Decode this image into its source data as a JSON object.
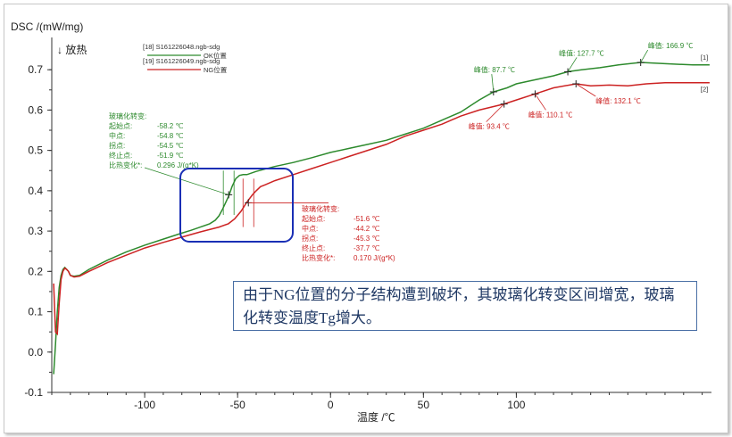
{
  "chart_data": {
    "type": "line",
    "ylabel": "DSC /(mW/mg)",
    "exo_label": "↓ 放热",
    "xlabel": "温度 /℃",
    "xlim": [
      -150,
      205
    ],
    "ylim": [
      -0.1,
      0.78
    ],
    "x_ticks": [
      "-100",
      "-50",
      "0",
      "50",
      "100"
    ],
    "x_tick_values": [
      -100,
      -50,
      0,
      50,
      100
    ],
    "y_ticks": [
      "0.7",
      "0.6",
      "0.5",
      "0.4",
      "0.3",
      "0.2",
      "0.1",
      "0.0",
      "-0.1"
    ],
    "y_tick_values": [
      0.7,
      0.6,
      0.5,
      0.4,
      0.3,
      0.2,
      0.1,
      0.0,
      -0.1
    ],
    "legend": [
      {
        "id": "[18] S161226048.ngb-sdg",
        "name": "OK位置",
        "color": "#2d8a2d"
      },
      {
        "id": "[19] S161226049.ngb-sdg",
        "name": "NG位置",
        "color": "#cc2222"
      }
    ],
    "series": [
      {
        "name": "OK位置",
        "end_tag": "[1]",
        "color": "#2d8a2d",
        "x": [
          -149,
          -148,
          -147,
          -146,
          -145,
          -144,
          -143,
          -142,
          -141,
          -140,
          -138,
          -135,
          -130,
          -120,
          -110,
          -100,
          -90,
          -80,
          -75,
          -70,
          -65,
          -62,
          -60,
          -58,
          -56,
          -54.5,
          -53,
          -51,
          -49,
          -47,
          -45,
          -40,
          -30,
          -20,
          -10,
          0,
          10,
          20,
          30,
          40,
          50,
          60,
          70,
          80,
          87.7,
          95,
          100,
          110,
          120,
          127.7,
          135,
          145,
          155,
          166.9,
          180,
          195,
          204
        ],
        "y": [
          -0.055,
          0.02,
          0.1,
          0.16,
          0.19,
          0.205,
          0.21,
          0.205,
          0.2,
          0.19,
          0.188,
          0.19,
          0.205,
          0.228,
          0.248,
          0.265,
          0.28,
          0.295,
          0.302,
          0.31,
          0.318,
          0.327,
          0.338,
          0.355,
          0.375,
          0.39,
          0.41,
          0.43,
          0.438,
          0.44,
          0.44,
          0.448,
          0.46,
          0.47,
          0.482,
          0.495,
          0.505,
          0.515,
          0.525,
          0.54,
          0.555,
          0.575,
          0.595,
          0.625,
          0.645,
          0.655,
          0.665,
          0.675,
          0.685,
          0.695,
          0.7,
          0.705,
          0.712,
          0.718,
          0.715,
          0.712,
          0.712
        ]
      },
      {
        "name": "NG位置",
        "end_tag": "[2]",
        "color": "#cc2222",
        "x": [
          -149,
          -148,
          -147,
          -146,
          -145,
          -144,
          -143,
          -142,
          -141,
          -140,
          -138,
          -135,
          -130,
          -120,
          -110,
          -100,
          -90,
          -80,
          -70,
          -60,
          -55,
          -51.6,
          -48,
          -45.3,
          -42,
          -40,
          -37.7,
          -35,
          -30,
          -20,
          -10,
          0,
          10,
          20,
          30,
          40,
          50,
          60,
          70,
          80,
          93.4,
          100,
          110.1,
          120,
          132.1,
          140,
          150,
          160,
          170,
          180,
          190,
          204
        ],
        "y": [
          0.17,
          0.05,
          0.045,
          0.12,
          0.18,
          0.2,
          0.208,
          0.205,
          0.2,
          0.19,
          0.186,
          0.188,
          0.2,
          0.222,
          0.24,
          0.258,
          0.272,
          0.285,
          0.298,
          0.31,
          0.318,
          0.33,
          0.35,
          0.37,
          0.39,
          0.4,
          0.41,
          0.415,
          0.425,
          0.44,
          0.455,
          0.47,
          0.485,
          0.5,
          0.515,
          0.535,
          0.55,
          0.565,
          0.585,
          0.6,
          0.615,
          0.625,
          0.64,
          0.655,
          0.665,
          0.66,
          0.662,
          0.66,
          0.665,
          0.668,
          0.668,
          0.668
        ]
      }
    ],
    "peaks": [
      {
        "series": "OK位置",
        "label": "峰值:  87.7 ℃",
        "x": 87.7,
        "y": 0.645
      },
      {
        "series": "OK位置",
        "label": "峰值:  127.7 ℃",
        "x": 127.7,
        "y": 0.695
      },
      {
        "series": "OK位置",
        "label": "峰值:  166.9 ℃",
        "x": 166.9,
        "y": 0.718
      },
      {
        "series": "NG位置",
        "label": "峰值:  93.4 ℃",
        "x": 93.4,
        "y": 0.615
      },
      {
        "series": "NG位置",
        "label": "峰值:  110.1 ℃",
        "x": 110.1,
        "y": 0.64
      },
      {
        "series": "NG位置",
        "label": "峰值:  132.1 ℃",
        "x": 132.1,
        "y": 0.665
      }
    ],
    "glass_transition": [
      {
        "series": "OK位置",
        "title": "玻璃化转变:",
        "rows": [
          {
            "label": "起始点:",
            "value": "-58.2 ℃"
          },
          {
            "label": "中点:",
            "value": "-54.8 ℃"
          },
          {
            "label": "拐点:",
            "value": "-54.5 ℃"
          },
          {
            "label": "终止点:",
            "value": "-51.9 ℃"
          },
          {
            "label": "比热变化*:",
            "value": "0.296 J/(g*K)"
          }
        ],
        "mid_x": -54.8,
        "mid_y": 0.39
      },
      {
        "series": "NG位置",
        "title": "玻璃化转变:",
        "rows": [
          {
            "label": "起始点:",
            "value": "-51.6 ℃"
          },
          {
            "label": "中点:",
            "value": "-44.2 ℃"
          },
          {
            "label": "拐点:",
            "value": "-45.3 ℃"
          },
          {
            "label": "终止点:",
            "value": "-37.7 ℃"
          },
          {
            "label": "比热变化*:",
            "value": "0.170 J/(g*K)"
          }
        ],
        "mid_x": -44.2,
        "mid_y": 0.37
      }
    ]
  },
  "note_text": "由于NG位置的分子结构遭到破坏，其玻璃化转变区间增宽，玻璃化转变温度Tg增大。"
}
